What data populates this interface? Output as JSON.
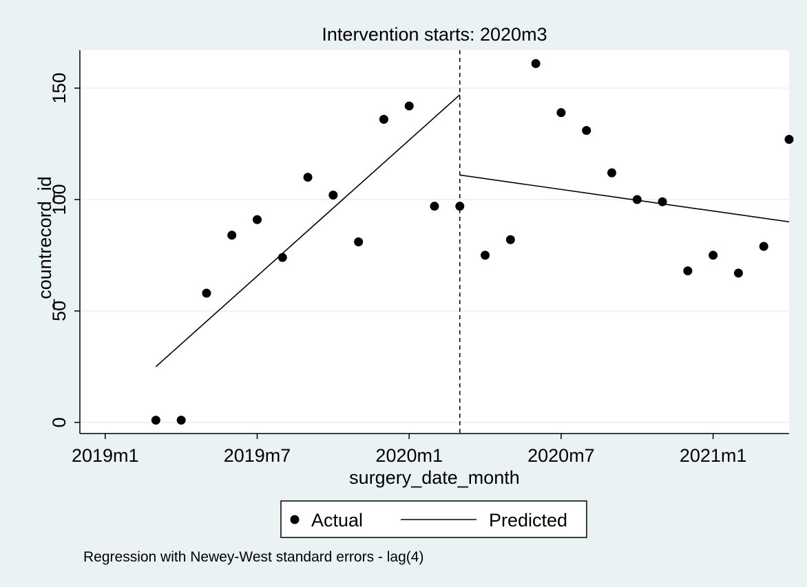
{
  "chart_data": {
    "type": "scatter",
    "title": "Intervention starts: 2020m3",
    "xlabel": "surgery_date_month",
    "ylabel": "_countrecord_id",
    "note": "Regression with Newey-West standard errors - lag(4)",
    "xlim": [
      "2018m12",
      "2021m4"
    ],
    "ylim": [
      -5,
      167
    ],
    "grid": true,
    "legend_position": "bottom",
    "x_ticks": [
      {
        "x": "2019m1",
        "label": "2019m1"
      },
      {
        "x": "2019m7",
        "label": "2019m7"
      },
      {
        "x": "2020m1",
        "label": "2020m1"
      },
      {
        "x": "2020m7",
        "label": "2020m7"
      },
      {
        "x": "2021m1",
        "label": "2021m1"
      }
    ],
    "y_ticks": [
      0,
      50,
      100,
      150
    ],
    "intervention_x": "2020m3",
    "series": [
      {
        "name": "Actual",
        "kind": "scatter",
        "x": [
          "2019m3",
          "2019m4",
          "2019m5",
          "2019m6",
          "2019m7",
          "2019m8",
          "2019m9",
          "2019m10",
          "2019m11",
          "2019m12",
          "2020m1",
          "2020m2",
          "2020m3",
          "2020m4",
          "2020m5",
          "2020m6",
          "2020m7",
          "2020m8",
          "2020m9",
          "2020m10",
          "2020m11",
          "2020m12",
          "2021m1",
          "2021m2",
          "2021m3",
          "2021m4"
        ],
        "y": [
          1,
          1,
          58,
          84,
          91,
          74,
          110,
          102,
          81,
          136,
          142,
          97,
          97,
          75,
          82,
          161,
          139,
          131,
          112,
          100,
          99,
          68,
          75,
          67,
          79,
          127
        ]
      },
      {
        "name": "Predicted",
        "kind": "line",
        "segments": [
          {
            "x": [
              "2019m3",
              "2020m3"
            ],
            "y": [
              25,
              147
            ]
          },
          {
            "x": [
              "2020m3",
              "2021m4"
            ],
            "y": [
              111,
              90
            ]
          }
        ]
      }
    ],
    "legend": {
      "actual_label": "Actual",
      "predicted_label": "Predicted"
    },
    "colors": {
      "plot_bg": "#ffffff",
      "outer_bg": "#eaf2f3",
      "grid": "#e9eff0",
      "mark": "#000000"
    }
  }
}
